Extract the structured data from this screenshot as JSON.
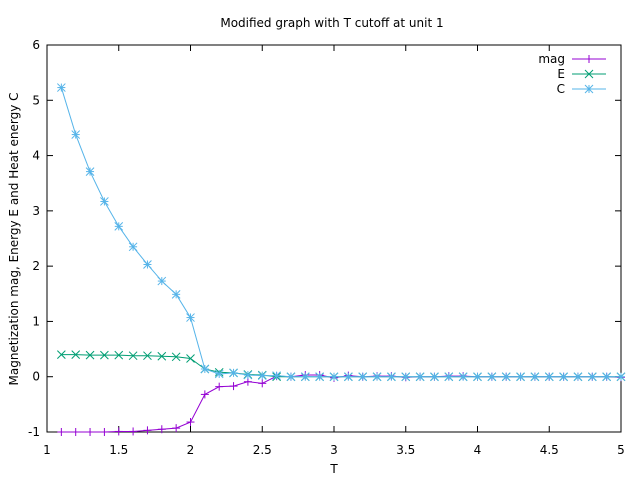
{
  "chart_data": {
    "type": "line",
    "title": "Modified graph with T cutoff at unit 1",
    "xlabel": "T",
    "ylabel": "Magnetization mag, Energy E and Heat energy C",
    "xlim": [
      1,
      5
    ],
    "ylim": [
      -1,
      6
    ],
    "xticks": [
      "1",
      "1.5",
      "2",
      "2.5",
      "3",
      "3.5",
      "4",
      "4.5",
      "5"
    ],
    "yticks": [
      "-1",
      "0",
      "1",
      "2",
      "3",
      "4",
      "5",
      "6"
    ],
    "grid": false,
    "legend_position": "top-right",
    "x": [
      1.1,
      1.2,
      1.3,
      1.4,
      1.5,
      1.6,
      1.7,
      1.8,
      1.9,
      2.0,
      2.1,
      2.2,
      2.3,
      2.4,
      2.5,
      2.6,
      2.7,
      2.8,
      2.9,
      3.0,
      3.1,
      3.2,
      3.3,
      3.4,
      3.5,
      3.6,
      3.7,
      3.8,
      3.9,
      4.0,
      4.1,
      4.2,
      4.3,
      4.4,
      4.5,
      4.6,
      4.7,
      4.8,
      4.9,
      5.0
    ],
    "series": [
      {
        "name": "mag",
        "color": "#9400d3",
        "marker": "plus",
        "values": [
          -1.0,
          -1.0,
          -1.0,
          -1.0,
          -0.99,
          -0.99,
          -0.97,
          -0.95,
          -0.93,
          -0.82,
          -0.32,
          -0.18,
          -0.17,
          -0.09,
          -0.12,
          0.01,
          0.0,
          0.03,
          0.03,
          -0.02,
          0.02,
          0.0,
          0.01,
          0.01,
          -0.01,
          0.0,
          0.0,
          0.01,
          0.01,
          0.0,
          0.0,
          0.0,
          0.0,
          0.0,
          0.0,
          0.0,
          0.0,
          0.0,
          0.0,
          -0.01
        ]
      },
      {
        "name": "E",
        "color": "#009e73",
        "marker": "cross",
        "values": [
          0.4,
          0.4,
          0.39,
          0.39,
          0.39,
          0.38,
          0.38,
          0.37,
          0.36,
          0.33,
          0.14,
          0.08,
          0.07,
          0.04,
          0.03,
          0.0,
          0.0,
          0.0,
          0.0,
          0.0,
          0.0,
          0.0,
          0.0,
          0.0,
          0.0,
          0.0,
          0.0,
          0.0,
          0.0,
          0.0,
          0.0,
          0.0,
          0.0,
          0.0,
          0.0,
          0.0,
          0.0,
          0.0,
          0.0,
          0.0
        ]
      },
      {
        "name": "C",
        "color": "#56b4e9",
        "marker": "star",
        "values": [
          5.23,
          4.38,
          3.71,
          3.17,
          2.72,
          2.35,
          2.03,
          1.73,
          1.49,
          1.07,
          0.14,
          0.05,
          0.07,
          0.03,
          0.02,
          0.02,
          0.0,
          0.0,
          0.0,
          0.0,
          0.0,
          0.0,
          0.0,
          0.0,
          0.0,
          0.0,
          0.0,
          0.0,
          0.0,
          0.0,
          0.0,
          0.0,
          0.0,
          0.0,
          0.0,
          0.0,
          0.0,
          0.0,
          0.0,
          0.0
        ]
      }
    ]
  }
}
